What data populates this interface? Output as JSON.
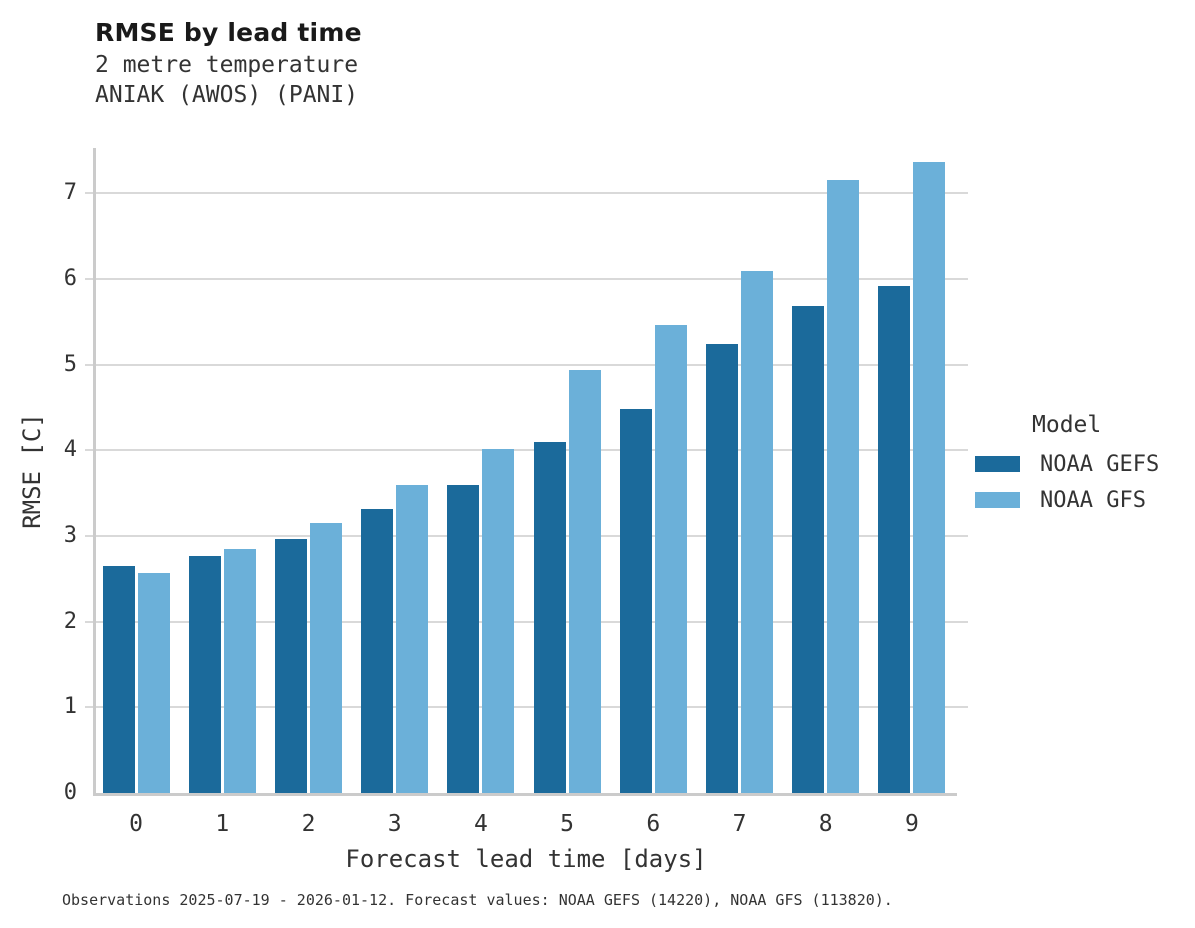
{
  "header": {
    "title": "RMSE by lead time",
    "subtitle_line1": "2 metre temperature",
    "subtitle_line2": "ANIAK (AWOS) (PANI)"
  },
  "legend": {
    "title": "Model",
    "entries": [
      {
        "label": "NOAA GEFS",
        "color": "#1b6a9b"
      },
      {
        "label": "NOAA GFS",
        "color": "#6bb0d9"
      }
    ]
  },
  "caption": "Observations 2025-07-19 - 2026-01-12. Forecast values: NOAA GEFS (14220), NOAA GFS (113820).",
  "chart_data": {
    "type": "bar",
    "title": "RMSE by lead time",
    "subtitle": [
      "2 metre temperature",
      "ANIAK (AWOS) (PANI)"
    ],
    "xlabel": "Forecast lead time [days]",
    "ylabel": "RMSE [C]",
    "categories": [
      "0",
      "1",
      "2",
      "3",
      "4",
      "5",
      "6",
      "7",
      "8",
      "9"
    ],
    "series": [
      {
        "name": "NOAA GEFS",
        "color": "#1b6a9b",
        "values": [
          2.65,
          2.77,
          2.96,
          3.31,
          3.6,
          4.1,
          4.48,
          5.24,
          5.68,
          5.92
        ]
      },
      {
        "name": "NOAA GFS",
        "color": "#6bb0d9",
        "values": [
          2.57,
          2.85,
          3.15,
          3.6,
          4.02,
          4.94,
          5.46,
          6.1,
          7.16,
          7.37
        ]
      }
    ],
    "ylim": [
      0,
      7.53
    ],
    "yticks": [
      0,
      1,
      2,
      3,
      4,
      5,
      6,
      7
    ],
    "grid": "horizontal-gridlines-on",
    "legend_title": "Model",
    "legend_position": "right"
  }
}
